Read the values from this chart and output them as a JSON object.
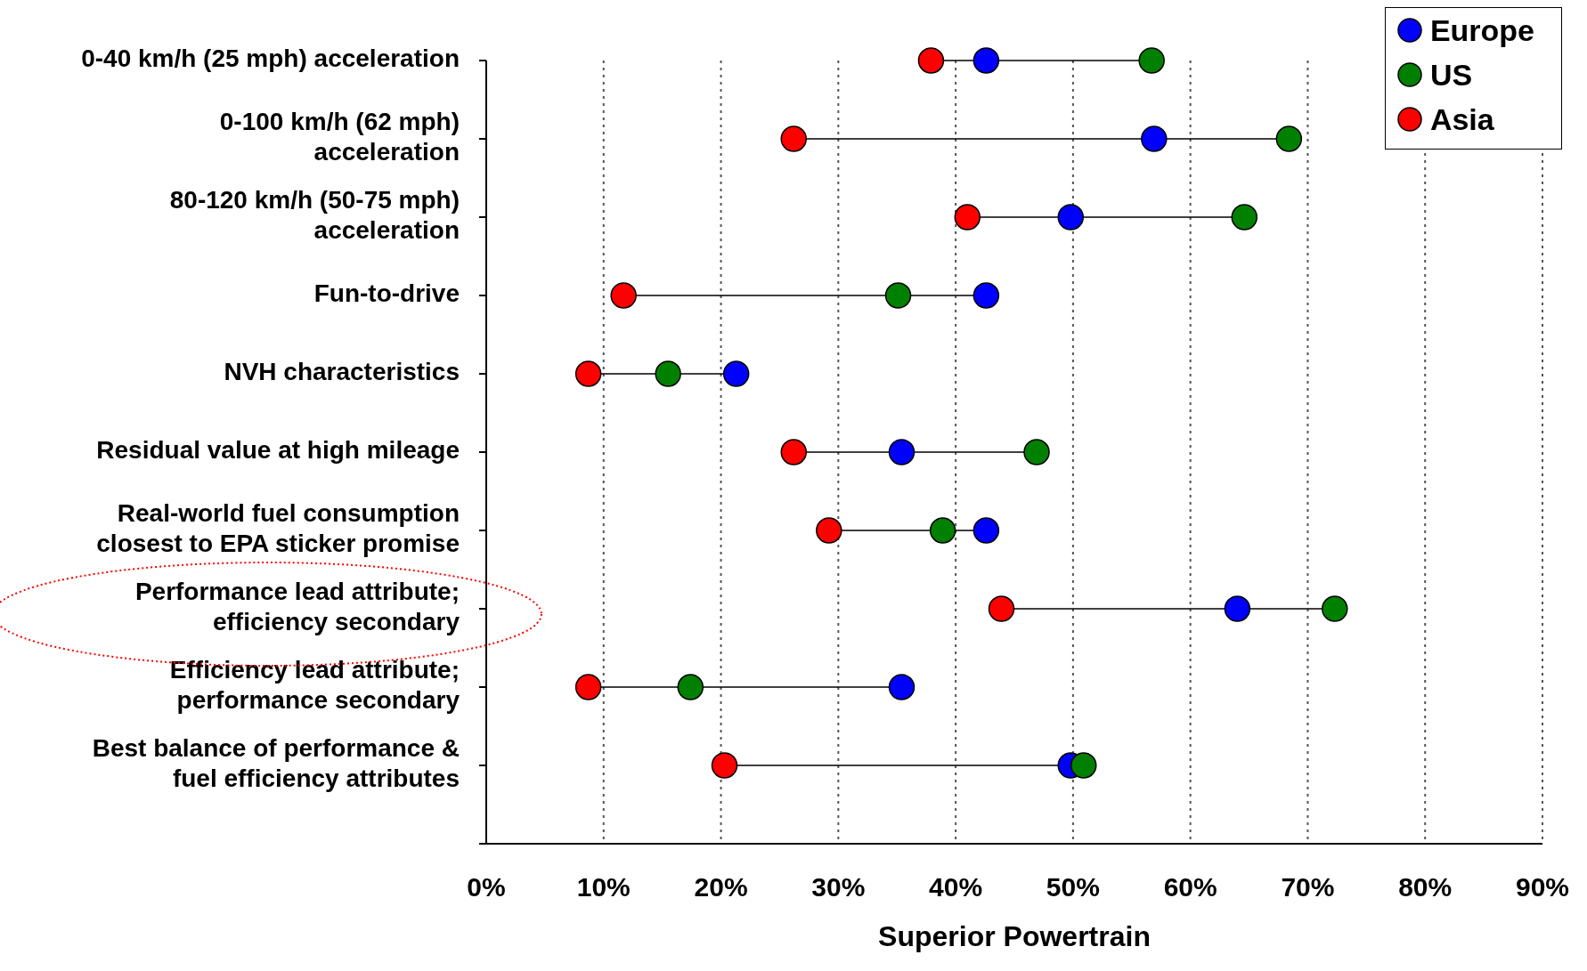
{
  "chart_data": {
    "type": "scatter",
    "orientation": "horizontal",
    "xlabel": "Superior Powertrain",
    "categories": [
      "0-40 km/h (25 mph) acceleration",
      "0-100 km/h (62 mph)\nacceleration",
      "80-120 km/h (50-75 mph)\nacceleration",
      "Fun-to-drive",
      "NVH characteristics",
      "Residual value at high mileage",
      "Real-world fuel consumption\nclosest to EPA sticker promise",
      "Performance lead attribute;\nefficiency secondary",
      "Efficiency lead attribute;\nperformance secondary",
      "Best balance of performance &\nfuel efficiency attributes"
    ],
    "series": [
      {
        "name": "Europe",
        "color": "#0000ff",
        "values": [
          42.6,
          56.9,
          49.8,
          42.6,
          21.3,
          35.4,
          42.6,
          64.0,
          35.4,
          49.8
        ]
      },
      {
        "name": "US",
        "color": "#008000",
        "values": [
          56.7,
          68.4,
          64.6,
          35.1,
          15.5,
          46.9,
          38.9,
          72.3,
          17.4,
          50.9
        ]
      },
      {
        "name": "Asia",
        "color": "#ff0000",
        "values": [
          37.9,
          26.2,
          41.0,
          11.7,
          8.7,
          26.2,
          29.2,
          43.9,
          8.7,
          20.3
        ]
      }
    ],
    "xlim": [
      0,
      90
    ],
    "xticks": [
      {
        "value": 0,
        "label": "0%"
      },
      {
        "value": 10,
        "label": "10%"
      },
      {
        "value": 20,
        "label": "20%"
      },
      {
        "value": 30,
        "label": "30%"
      },
      {
        "value": 40,
        "label": "40%"
      },
      {
        "value": 50,
        "label": "50%"
      },
      {
        "value": 60,
        "label": "60%"
      },
      {
        "value": 70,
        "label": "70%"
      },
      {
        "value": 80,
        "label": "80%"
      },
      {
        "value": 90,
        "label": "90%"
      }
    ],
    "grid": "x",
    "legend": "top right",
    "marker": "circle"
  }
}
